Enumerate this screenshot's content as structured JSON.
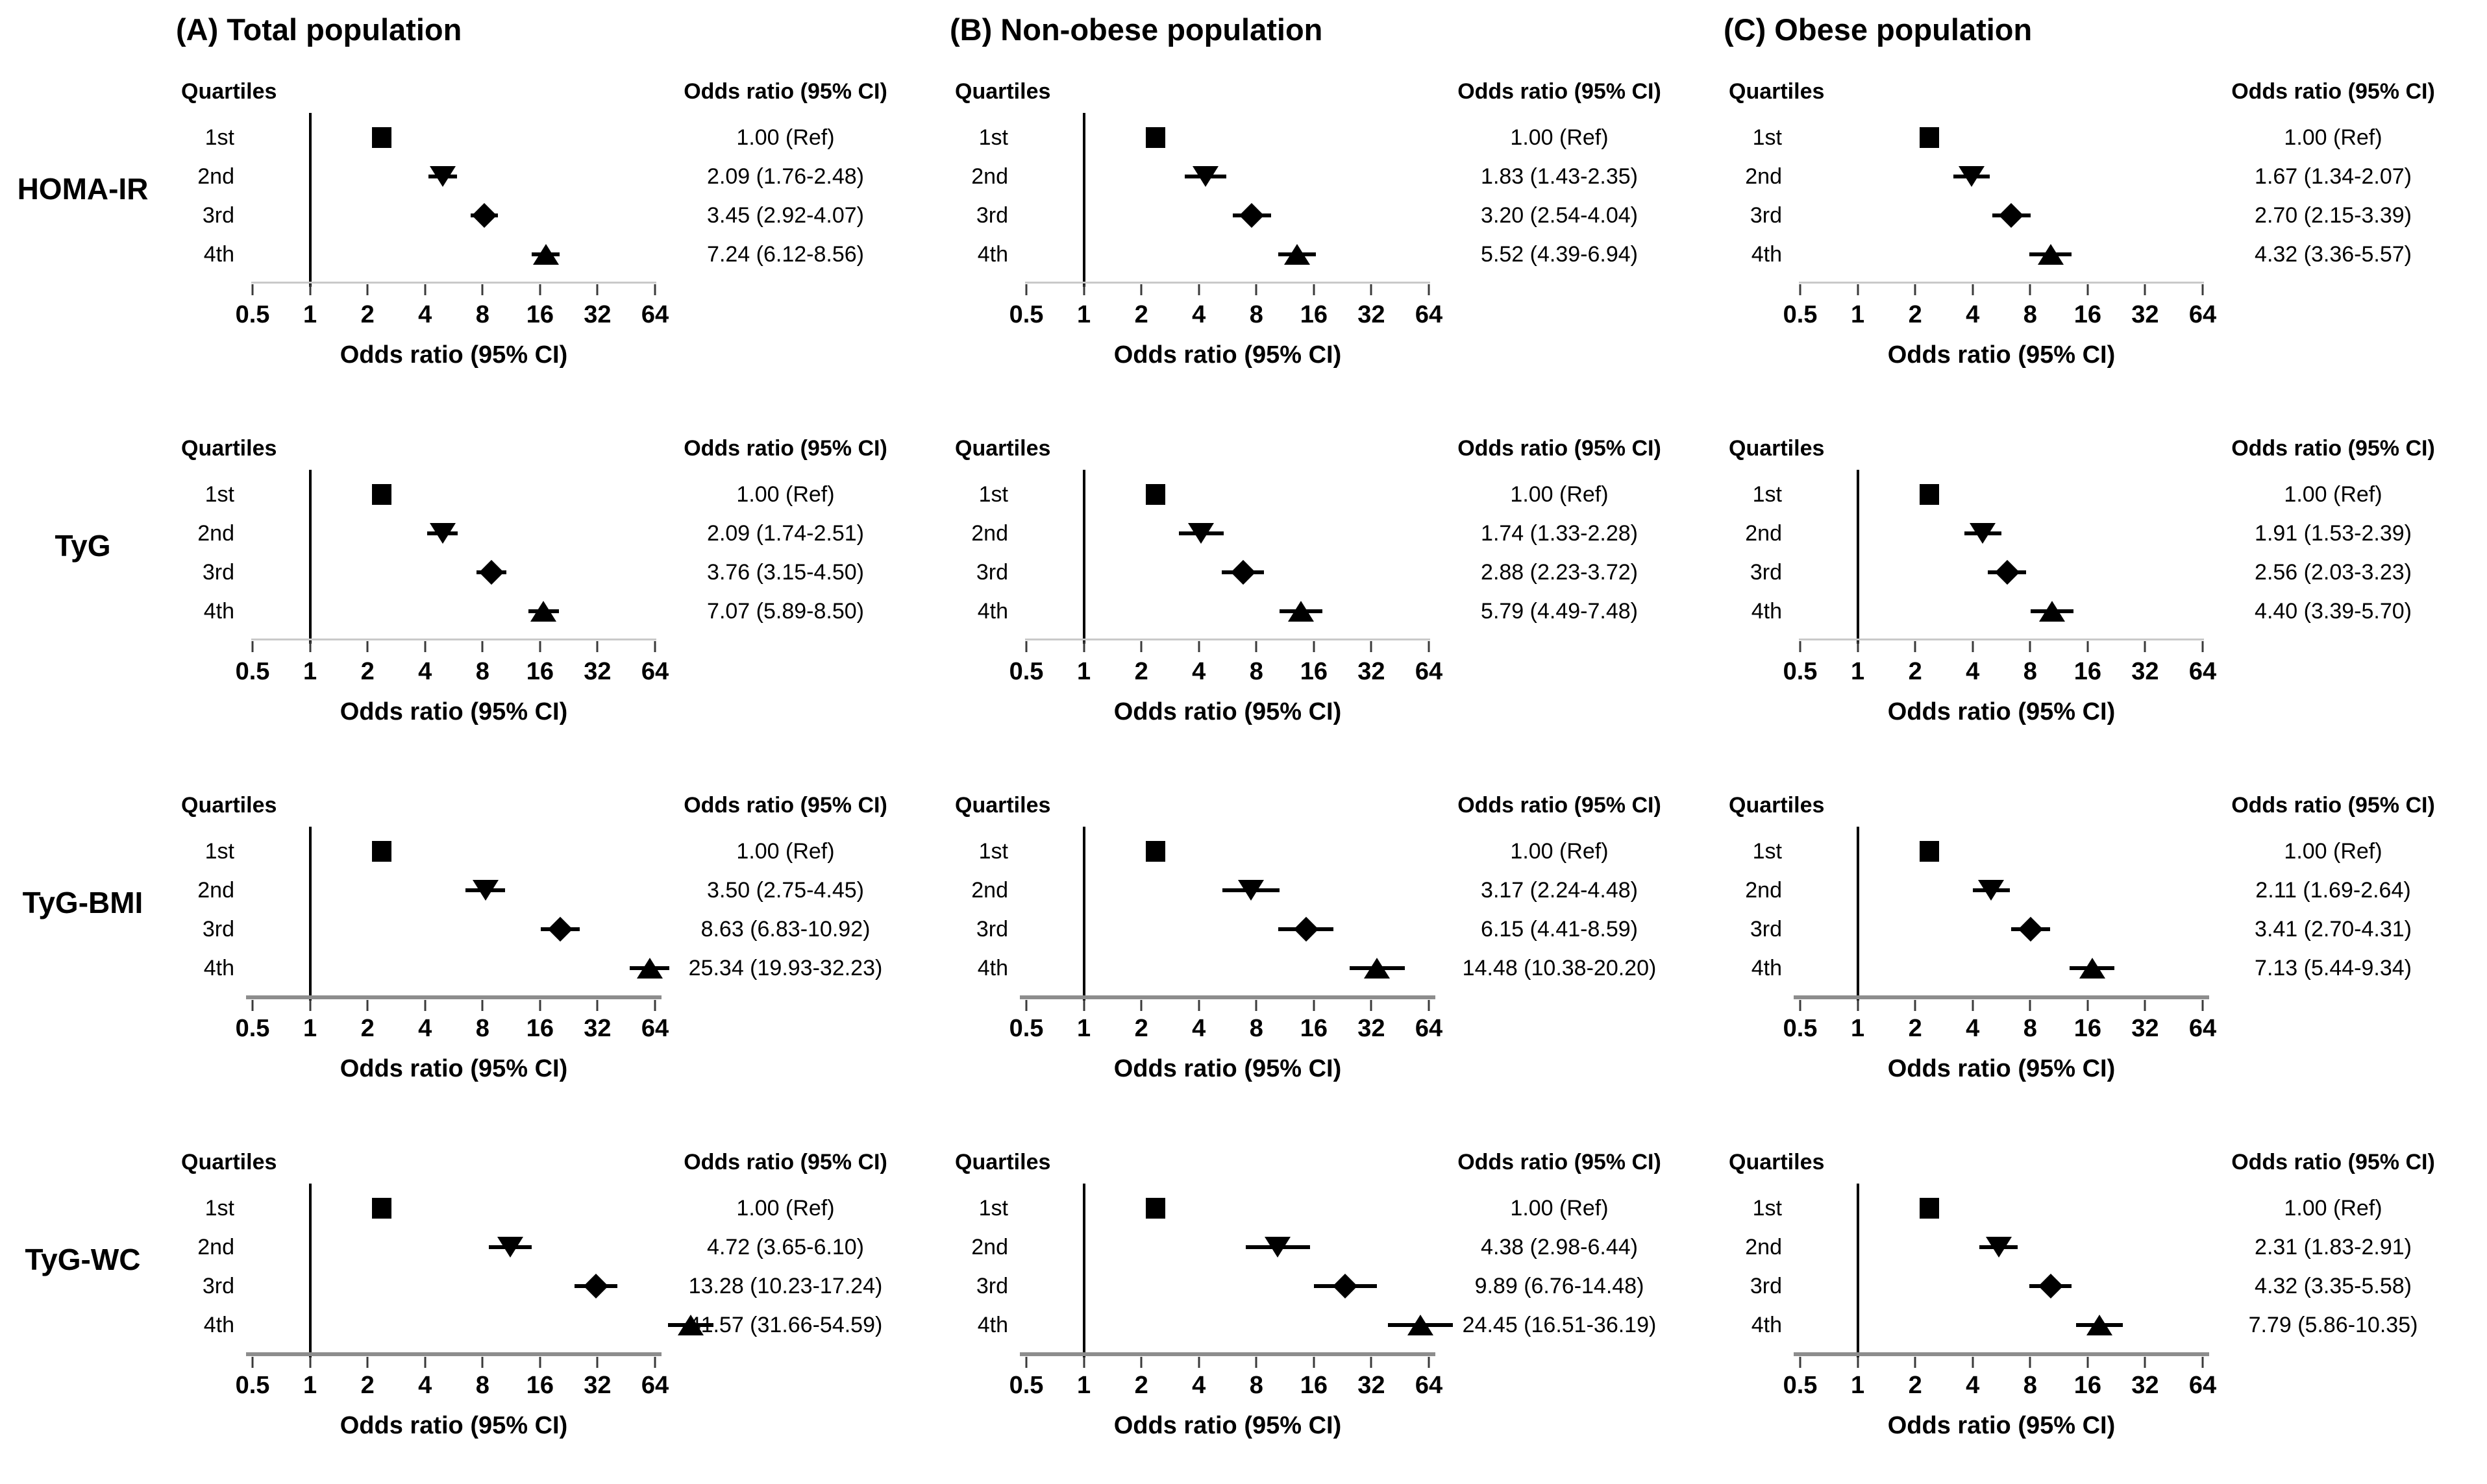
{
  "figure": {
    "columns": [
      {
        "key": "A",
        "title": "(A) Total population"
      },
      {
        "key": "B",
        "title": "(B) Non-obese population"
      },
      {
        "key": "C",
        "title": "(C) Obese population"
      }
    ],
    "rows": [
      {
        "key": "homa-ir",
        "label": "HOMA-IR"
      },
      {
        "key": "tyg",
        "label": "TyG"
      },
      {
        "key": "tyg-bmi",
        "label": "TyG-BMI"
      },
      {
        "key": "tyg-wc",
        "label": "TyG-WC"
      }
    ],
    "panel_header": {
      "quartiles": "Quartiles",
      "odds_ratio": "Odds ratio (95% CI)"
    },
    "axis": {
      "scale": "log2",
      "xlim": [
        0.5,
        64
      ],
      "ticks": [
        "0.5",
        "1",
        "2",
        "4",
        "8",
        "16",
        "32",
        "64"
      ],
      "tick_values": [
        0.5,
        1,
        2,
        4,
        8,
        16,
        32,
        64
      ],
      "label": "Odds ratio (95% CI)",
      "refline": 1
    },
    "colors": {
      "marker": "#000000",
      "ci_line": "#000000",
      "refline": "#000000",
      "axis_light": "#c9c9c9",
      "axis_heavy": "#8d8d8d",
      "text": "#000000",
      "background": "#ffffff"
    },
    "marker_shapes_by_quartile": [
      "square",
      "triangle-down",
      "diamond",
      "triangle-up"
    ]
  },
  "chart_data": [
    {
      "type": "forest",
      "row": "HOMA-IR",
      "column": "(A) Total population",
      "xscale": "log2",
      "xlim": [
        0.5,
        64
      ],
      "xlabel": "Odds ratio (95% CI)",
      "quartiles": [
        "1st",
        "2nd",
        "3rd",
        "4th"
      ],
      "markers": [
        "square",
        "triangle-down",
        "diamond",
        "triangle-up"
      ],
      "or": [
        1.0,
        2.09,
        3.45,
        7.24
      ],
      "ci_low": [
        null,
        1.76,
        2.92,
        6.12
      ],
      "ci_high": [
        null,
        2.48,
        4.07,
        8.56
      ],
      "labels": [
        "1.00 (Ref)",
        "2.09 (1.76-2.48)",
        "3.45 (2.92-4.07)",
        "7.24 (6.12-8.56)"
      ],
      "show_refline": true,
      "axis_style": "light"
    },
    {
      "type": "forest",
      "row": "HOMA-IR",
      "column": "(B) Non-obese population",
      "xscale": "log2",
      "xlim": [
        0.5,
        64
      ],
      "xlabel": "Odds ratio (95% CI)",
      "quartiles": [
        "1st",
        "2nd",
        "3rd",
        "4th"
      ],
      "markers": [
        "square",
        "triangle-down",
        "diamond",
        "triangle-up"
      ],
      "or": [
        1.0,
        1.83,
        3.2,
        5.52
      ],
      "ci_low": [
        null,
        1.43,
        2.54,
        4.39
      ],
      "ci_high": [
        null,
        2.35,
        4.04,
        6.94
      ],
      "labels": [
        "1.00 (Ref)",
        "1.83 (1.43-2.35)",
        "3.20 (2.54-4.04)",
        "5.52 (4.39-6.94)"
      ],
      "show_refline": true,
      "axis_style": "light"
    },
    {
      "type": "forest",
      "row": "HOMA-IR",
      "column": "(C) Obese population",
      "xscale": "log2",
      "xlim": [
        0.5,
        64
      ],
      "xlabel": "Odds ratio (95% CI)",
      "quartiles": [
        "1st",
        "2nd",
        "3rd",
        "4th"
      ],
      "markers": [
        "square",
        "triangle-down",
        "diamond",
        "triangle-up"
      ],
      "or": [
        1.0,
        1.67,
        2.7,
        4.32
      ],
      "ci_low": [
        null,
        1.34,
        2.15,
        3.36
      ],
      "ci_high": [
        null,
        2.07,
        3.39,
        5.57
      ],
      "labels": [
        "1.00 (Ref)",
        "1.67 (1.34-2.07)",
        "2.70 (2.15-3.39)",
        "4.32 (3.36-5.57)"
      ],
      "show_refline": false,
      "axis_style": "light"
    },
    {
      "type": "forest",
      "row": "TyG",
      "column": "(A) Total population",
      "xscale": "log2",
      "xlim": [
        0.5,
        64
      ],
      "xlabel": "Odds ratio (95% CI)",
      "quartiles": [
        "1st",
        "2nd",
        "3rd",
        "4th"
      ],
      "markers": [
        "square",
        "triangle-down",
        "diamond",
        "triangle-up"
      ],
      "or": [
        1.0,
        2.09,
        3.76,
        7.07
      ],
      "ci_low": [
        null,
        1.74,
        3.15,
        5.89
      ],
      "ci_high": [
        null,
        2.51,
        4.5,
        8.5
      ],
      "labels": [
        "1.00 (Ref)",
        "2.09 (1.74-2.51)",
        "3.76 (3.15-4.50)",
        "7.07 (5.89-8.50)"
      ],
      "show_refline": true,
      "axis_style": "light"
    },
    {
      "type": "forest",
      "row": "TyG",
      "column": "(B) Non-obese population",
      "xscale": "log2",
      "xlim": [
        0.5,
        64
      ],
      "xlabel": "Odds ratio (95% CI)",
      "quartiles": [
        "1st",
        "2nd",
        "3rd",
        "4th"
      ],
      "markers": [
        "square",
        "triangle-down",
        "diamond",
        "triangle-up"
      ],
      "or": [
        1.0,
        1.74,
        2.88,
        5.79
      ],
      "ci_low": [
        null,
        1.33,
        2.23,
        4.49
      ],
      "ci_high": [
        null,
        2.28,
        3.72,
        7.48
      ],
      "labels": [
        "1.00 (Ref)",
        "1.74 (1.33-2.28)",
        "2.88 (2.23-3.72)",
        "5.79 (4.49-7.48)"
      ],
      "show_refline": true,
      "axis_style": "light"
    },
    {
      "type": "forest",
      "row": "TyG",
      "column": "(C) Obese population",
      "xscale": "log2",
      "xlim": [
        0.5,
        64
      ],
      "xlabel": "Odds ratio (95% CI)",
      "quartiles": [
        "1st",
        "2nd",
        "3rd",
        "4th"
      ],
      "markers": [
        "square",
        "triangle-down",
        "diamond",
        "triangle-up"
      ],
      "or": [
        1.0,
        1.91,
        2.56,
        4.4
      ],
      "ci_low": [
        null,
        1.53,
        2.03,
        3.39
      ],
      "ci_high": [
        null,
        2.39,
        3.23,
        5.7
      ],
      "labels": [
        "1.00 (Ref)",
        "1.91 (1.53-2.39)",
        "2.56 (2.03-3.23)",
        "4.40 (3.39-5.70)"
      ],
      "show_refline": true,
      "axis_style": "light"
    },
    {
      "type": "forest",
      "row": "TyG-BMI",
      "column": "(A) Total population",
      "xscale": "log2",
      "xlim": [
        0.5,
        64
      ],
      "xlabel": "Odds ratio (95% CI)",
      "quartiles": [
        "1st",
        "2nd",
        "3rd",
        "4th"
      ],
      "markers": [
        "square",
        "triangle-down",
        "diamond",
        "triangle-up"
      ],
      "or": [
        1.0,
        3.5,
        8.63,
        25.34
      ],
      "ci_low": [
        null,
        2.75,
        6.83,
        19.93
      ],
      "ci_high": [
        null,
        4.45,
        10.92,
        32.23
      ],
      "labels": [
        "1.00 (Ref)",
        "3.50 (2.75-4.45)",
        "8.63 (6.83-10.92)",
        "25.34 (19.93-32.23)"
      ],
      "show_refline": true,
      "axis_style": "heavy"
    },
    {
      "type": "forest",
      "row": "TyG-BMI",
      "column": "(B) Non-obese population",
      "xscale": "log2",
      "xlim": [
        0.5,
        64
      ],
      "xlabel": "Odds ratio (95% CI)",
      "quartiles": [
        "1st",
        "2nd",
        "3rd",
        "4th"
      ],
      "markers": [
        "square",
        "triangle-down",
        "diamond",
        "triangle-up"
      ],
      "or": [
        1.0,
        3.17,
        6.15,
        14.48
      ],
      "ci_low": [
        null,
        2.24,
        4.41,
        10.38
      ],
      "ci_high": [
        null,
        4.48,
        8.59,
        20.2
      ],
      "labels": [
        "1.00 (Ref)",
        "3.17 (2.24-4.48)",
        "6.15 (4.41-8.59)",
        "14.48 (10.38-20.20)"
      ],
      "show_refline": true,
      "axis_style": "heavy"
    },
    {
      "type": "forest",
      "row": "TyG-BMI",
      "column": "(C) Obese population",
      "xscale": "log2",
      "xlim": [
        0.5,
        64
      ],
      "xlabel": "Odds ratio (95% CI)",
      "quartiles": [
        "1st",
        "2nd",
        "3rd",
        "4th"
      ],
      "markers": [
        "square",
        "triangle-down",
        "diamond",
        "triangle-up"
      ],
      "or": [
        1.0,
        2.11,
        3.41,
        7.13
      ],
      "ci_low": [
        null,
        1.69,
        2.7,
        5.44
      ],
      "ci_high": [
        null,
        2.64,
        4.31,
        9.34
      ],
      "labels": [
        "1.00 (Ref)",
        "2.11 (1.69-2.64)",
        "3.41 (2.70-4.31)",
        "7.13 (5.44-9.34)"
      ],
      "show_refline": true,
      "axis_style": "heavy"
    },
    {
      "type": "forest",
      "row": "TyG-WC",
      "column": "(A) Total population",
      "xscale": "log2",
      "xlim": [
        0.5,
        64
      ],
      "xlabel": "Odds ratio (95% CI)",
      "quartiles": [
        "1st",
        "2nd",
        "3rd",
        "4th"
      ],
      "markers": [
        "square",
        "triangle-down",
        "diamond",
        "triangle-up"
      ],
      "or": [
        1.0,
        4.72,
        13.28,
        41.57
      ],
      "ci_low": [
        null,
        3.65,
        10.23,
        31.66
      ],
      "ci_high": [
        null,
        6.1,
        17.24,
        54.59
      ],
      "labels": [
        "1.00 (Ref)",
        "4.72 (3.65-6.10)",
        "13.28 (10.23-17.24)",
        "41.57 (31.66-54.59)"
      ],
      "show_refline": true,
      "axis_style": "heavy"
    },
    {
      "type": "forest",
      "row": "TyG-WC",
      "column": "(B) Non-obese population",
      "xscale": "log2",
      "xlim": [
        0.5,
        64
      ],
      "xlabel": "Odds ratio (95% CI)",
      "quartiles": [
        "1st",
        "2nd",
        "3rd",
        "4th"
      ],
      "markers": [
        "square",
        "triangle-down",
        "diamond",
        "triangle-up"
      ],
      "or": [
        1.0,
        4.38,
        9.89,
        24.45
      ],
      "ci_low": [
        null,
        2.98,
        6.76,
        16.51
      ],
      "ci_high": [
        null,
        6.44,
        14.48,
        36.19
      ],
      "labels": [
        "1.00 (Ref)",
        "4.38 (2.98-6.44)",
        "9.89 (6.76-14.48)",
        "24.45 (16.51-36.19)"
      ],
      "show_refline": true,
      "axis_style": "heavy"
    },
    {
      "type": "forest",
      "row": "TyG-WC",
      "column": "(C) Obese population",
      "xscale": "log2",
      "xlim": [
        0.5,
        64
      ],
      "xlabel": "Odds ratio (95% CI)",
      "quartiles": [
        "1st",
        "2nd",
        "3rd",
        "4th"
      ],
      "markers": [
        "square",
        "triangle-down",
        "diamond",
        "triangle-up"
      ],
      "or": [
        1.0,
        2.31,
        4.32,
        7.79
      ],
      "ci_low": [
        null,
        1.83,
        3.35,
        5.86
      ],
      "ci_high": [
        null,
        2.91,
        5.58,
        10.35
      ],
      "labels": [
        "1.00 (Ref)",
        "2.31 (1.83-2.91)",
        "4.32 (3.35-5.58)",
        "7.79 (5.86-10.35)"
      ],
      "show_refline": true,
      "axis_style": "heavy"
    }
  ]
}
